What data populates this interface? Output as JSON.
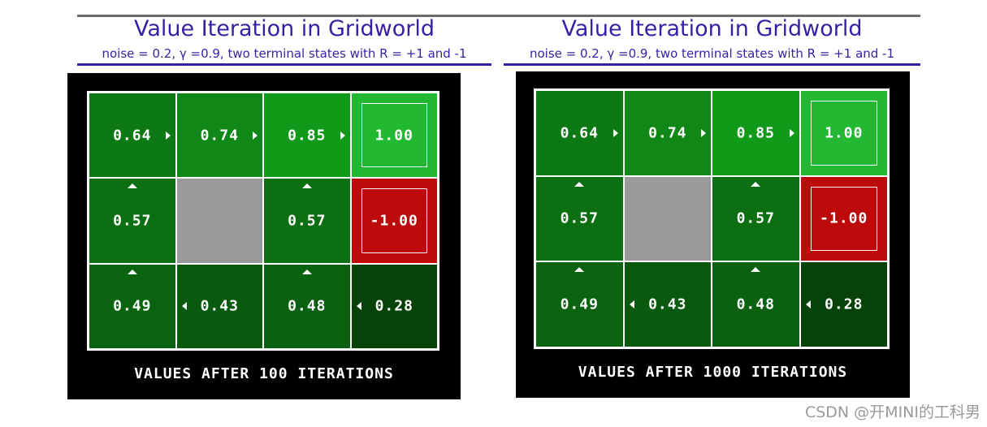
{
  "panels": [
    {
      "title": "Value Iteration in Gridworld",
      "subtitle": "noise = 0.2, γ =0.9, two terminal states with R = +1 and -1",
      "caption": "VALUES AFTER 100 ITERATIONS",
      "rows": [
        [
          {
            "value": "0.64",
            "arrow": "right",
            "kind": "state"
          },
          {
            "value": "0.74",
            "arrow": "right",
            "kind": "state"
          },
          {
            "value": "0.85",
            "arrow": "right",
            "kind": "state"
          },
          {
            "value": "1.00",
            "arrow": "",
            "kind": "terminal-pos"
          }
        ],
        [
          {
            "value": "0.57",
            "arrow": "up",
            "kind": "state"
          },
          {
            "value": "",
            "arrow": "",
            "kind": "obstacle"
          },
          {
            "value": "0.57",
            "arrow": "up",
            "kind": "state"
          },
          {
            "value": "-1.00",
            "arrow": "",
            "kind": "terminal-neg"
          }
        ],
        [
          {
            "value": "0.49",
            "arrow": "up",
            "kind": "state"
          },
          {
            "value": "0.43",
            "arrow": "left",
            "kind": "state"
          },
          {
            "value": "0.48",
            "arrow": "up",
            "kind": "state"
          },
          {
            "value": "0.28",
            "arrow": "left",
            "kind": "state"
          }
        ]
      ]
    },
    {
      "title": "Value Iteration in Gridworld",
      "subtitle": "noise = 0.2, γ =0.9, two terminal states with R = +1 and -1",
      "caption": "VALUES AFTER 1000 ITERATIONS",
      "rows": [
        [
          {
            "value": "0.64",
            "arrow": "right",
            "kind": "state"
          },
          {
            "value": "0.74",
            "arrow": "right",
            "kind": "state"
          },
          {
            "value": "0.85",
            "arrow": "right",
            "kind": "state"
          },
          {
            "value": "1.00",
            "arrow": "",
            "kind": "terminal-pos"
          }
        ],
        [
          {
            "value": "0.57",
            "arrow": "up",
            "kind": "state"
          },
          {
            "value": "",
            "arrow": "",
            "kind": "obstacle"
          },
          {
            "value": "0.57",
            "arrow": "up",
            "kind": "state"
          },
          {
            "value": "-1.00",
            "arrow": "",
            "kind": "terminal-neg"
          }
        ],
        [
          {
            "value": "0.49",
            "arrow": "up",
            "kind": "state"
          },
          {
            "value": "0.43",
            "arrow": "left",
            "kind": "state"
          },
          {
            "value": "0.48",
            "arrow": "up",
            "kind": "state"
          },
          {
            "value": "0.28",
            "arrow": "left",
            "kind": "state"
          }
        ]
      ]
    }
  ],
  "colors": {
    "state_green_min": "#063f08",
    "state_green_max": "#12a01c",
    "terminal_positive": "#22b832",
    "terminal_negative": "#bd0a0a",
    "obstacle": "#9a9a9a",
    "title_purple": "#3a1fa5"
  },
  "watermark": "CSDN @开MINI的工科男"
}
